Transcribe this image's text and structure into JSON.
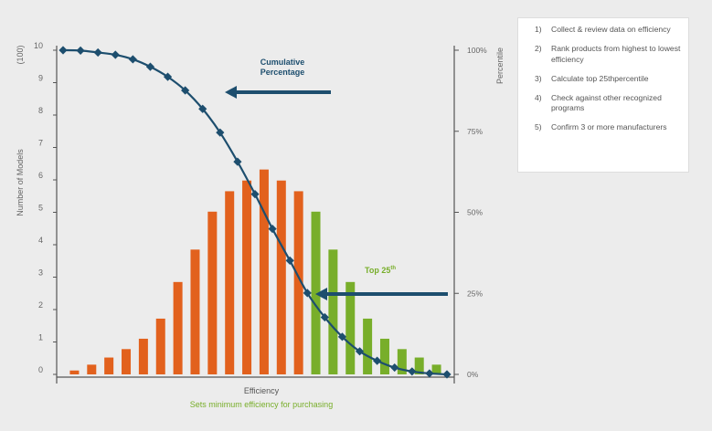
{
  "chart_data": {
    "type": "bar",
    "title": "",
    "xlabel": "Efficiency",
    "xsublabel": "Sets minimum efficiency for purchasing",
    "ylabel": "Number of Models",
    "ylabel_unit": "(100)",
    "y2label": "Percentile",
    "ylim": [
      0,
      10
    ],
    "yticks": [
      "0",
      "1",
      "2",
      "3",
      "4",
      "5",
      "6",
      "7",
      "8",
      "9",
      "10"
    ],
    "y2ticks": [
      {
        "value": 0,
        "label": "0%"
      },
      {
        "value": 25,
        "label": "25%"
      },
      {
        "value": 50,
        "label": "50%"
      },
      {
        "value": 75,
        "label": "75%"
      },
      {
        "value": 100,
        "label": "100%"
      }
    ],
    "bars": [
      {
        "value": 0.12,
        "group": "standard"
      },
      {
        "value": 0.3,
        "group": "standard"
      },
      {
        "value": 0.52,
        "group": "standard"
      },
      {
        "value": 0.78,
        "group": "standard"
      },
      {
        "value": 1.1,
        "group": "standard"
      },
      {
        "value": 1.72,
        "group": "standard"
      },
      {
        "value": 2.85,
        "group": "standard"
      },
      {
        "value": 3.85,
        "group": "standard"
      },
      {
        "value": 5.02,
        "group": "standard"
      },
      {
        "value": 5.65,
        "group": "standard"
      },
      {
        "value": 5.98,
        "group": "standard"
      },
      {
        "value": 6.32,
        "group": "standard"
      },
      {
        "value": 5.98,
        "group": "standard"
      },
      {
        "value": 5.65,
        "group": "standard"
      },
      {
        "value": 5.02,
        "group": "top25"
      },
      {
        "value": 3.85,
        "group": "top25"
      },
      {
        "value": 2.85,
        "group": "top25"
      },
      {
        "value": 1.72,
        "group": "top25"
      },
      {
        "value": 1.1,
        "group": "top25"
      },
      {
        "value": 0.78,
        "group": "top25"
      },
      {
        "value": 0.52,
        "group": "top25"
      },
      {
        "value": 0.3,
        "group": "top25"
      }
    ],
    "cumulative": {
      "name": "Cumulative Percentage",
      "values": [
        100,
        99.9,
        99.3,
        98.6,
        97.2,
        94.9,
        91.8,
        87.6,
        81.9,
        74.6,
        65.6,
        55.6,
        44.9,
        35.1,
        25.1,
        17.6,
        11.6,
        7.1,
        4.2,
        2.1,
        0.9,
        0.3,
        0
      ]
    },
    "colors": {
      "standard": "#e2611d",
      "top25": "#78ae2a",
      "line": "#1d4e6e",
      "arrow": "#1d4e6e",
      "axis": "#555555",
      "text": "#666666",
      "sublabel": "#78ae2a",
      "top_label": "#78ae2a"
    },
    "annotations": {
      "cumulative_label_line1": "Cumulative",
      "cumulative_label_line2": "Percentage",
      "top_label": "Top 25",
      "top_label_sup": "th"
    }
  },
  "steps": [
    {
      "num": "1)",
      "text": "Collect & review data on efficiency"
    },
    {
      "num": "2)",
      "text": "Rank products from highest to lowest efficiency"
    },
    {
      "num": "3)",
      "text": "Calculate top 25thpercentile"
    },
    {
      "num": "4)",
      "text": "Check against other recognized programs"
    },
    {
      "num": "5)",
      "text": "Confirm 3 or more manufacturers"
    }
  ]
}
